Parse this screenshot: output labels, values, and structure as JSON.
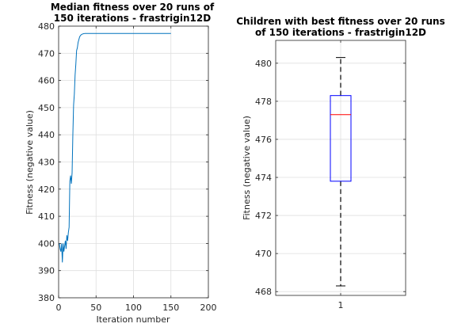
{
  "chart_data": [
    {
      "type": "line",
      "title": "Median fitness over 20 runs of 150 iterations - frastrigin12D",
      "xlabel": "Iteration number",
      "ylabel": "Fitness (negative value)",
      "xlim": [
        0,
        200
      ],
      "ylim": [
        380,
        480
      ],
      "xticks": [
        0,
        50,
        100,
        150,
        200
      ],
      "yticks": [
        380,
        390,
        400,
        410,
        420,
        430,
        440,
        450,
        460,
        470,
        480
      ],
      "grid": true,
      "series": [
        {
          "color": "#0072bd",
          "x": [
            1,
            2,
            3,
            4,
            5,
            6,
            7,
            8,
            9,
            10,
            11,
            12,
            13,
            14,
            15,
            16,
            17,
            18,
            19,
            20,
            21,
            22,
            23,
            24,
            25,
            26,
            27,
            28,
            29,
            30,
            31,
            32,
            33,
            34,
            35,
            36,
            38,
            40,
            45,
            50,
            60,
            80,
            100,
            120,
            140,
            150
          ],
          "y": [
            400,
            398,
            397,
            400,
            393,
            400,
            397,
            399,
            401,
            398,
            403,
            401,
            404,
            406,
            423,
            425,
            422,
            426,
            440,
            451,
            455,
            462,
            466,
            471,
            472,
            474,
            475,
            476,
            476.5,
            476.8,
            477,
            477.1,
            477.2,
            477.25,
            477.3,
            477.3,
            477.3,
            477.3,
            477.3,
            477.3,
            477.3,
            477.3,
            477.3,
            477.3,
            477.3,
            477.3
          ]
        }
      ]
    },
    {
      "type": "box",
      "title": "Children with best fitness over 20 runs of 150 iterations - frastrigin12D",
      "xlabel": "",
      "ylabel": "Fitness (negative value)",
      "categories": [
        "1"
      ],
      "ylim": [
        467.8,
        481.2
      ],
      "yticks": [
        468,
        470,
        472,
        474,
        476,
        478,
        480
      ],
      "grid": true,
      "box": {
        "whisker_low": 468.3,
        "q1": 473.8,
        "median": 477.3,
        "q3": 478.3,
        "whisker_high": 480.3,
        "box_color": "#0000ff",
        "median_color": "#ff0000",
        "whisker_color": "#000000"
      }
    }
  ]
}
